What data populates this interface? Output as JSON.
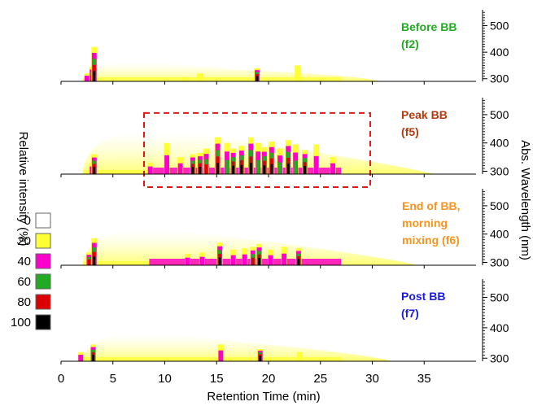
{
  "chart_data": {
    "type": "heatmap",
    "xlabel": "Retention Time (min)",
    "xlim": [
      0,
      40
    ],
    "x_ticks": [
      0,
      5,
      10,
      15,
      20,
      25,
      30,
      35
    ],
    "y_right_label": "Abs. Wavelength (nm)",
    "y_right_ticks": [
      300,
      400,
      500
    ],
    "ylim": [
      290,
      560
    ],
    "colorbar": {
      "label": "Relative intensity (%)",
      "levels": [
        {
          "value": "0",
          "color": "#ffffff"
        },
        {
          "value": "20",
          "color": "#ffff33"
        },
        {
          "value": "40",
          "color": "#ff00cc"
        },
        {
          "value": "60",
          "color": "#22aa22"
        },
        {
          "value": "80",
          "color": "#dd0000"
        },
        {
          "value": "100",
          "color": "#000000"
        }
      ]
    },
    "panels": [
      {
        "id": "f2",
        "label_line1": "Before BB",
        "label_line2": "(f2)",
        "label_color": "#22aa22",
        "glow": 0.35,
        "peaks": [
          {
            "rt": 2.5,
            "height": 320,
            "level": 40
          },
          {
            "rt": 3.0,
            "height": 345,
            "level": 80
          },
          {
            "rt": 3.2,
            "height": 420,
            "level": 100
          },
          {
            "rt": 12.0,
            "height": 305,
            "level": 20
          },
          {
            "rt": 13.4,
            "height": 320,
            "level": 20
          },
          {
            "rt": 18.9,
            "height": 340,
            "level": 100
          },
          {
            "rt": 22.8,
            "height": 350,
            "level": 20
          }
        ]
      },
      {
        "id": "f5",
        "label_line1": "Peak BB",
        "label_line2": "(f5)",
        "label_color": "#b23a10",
        "glow": 1.0,
        "highlight_box": [
          8.0,
          29.8
        ],
        "peaks": [
          {
            "rt": 3.0,
            "height": 330,
            "level": 40
          },
          {
            "rt": 3.2,
            "height": 360,
            "level": 100
          },
          {
            "rt": 8.6,
            "height": 330,
            "level": 40
          },
          {
            "rt": 10.2,
            "height": 400,
            "level": 40
          },
          {
            "rt": 11.5,
            "height": 350,
            "level": 40
          },
          {
            "rt": 12.7,
            "height": 360,
            "level": 100
          },
          {
            "rt": 13.4,
            "height": 365,
            "level": 100
          },
          {
            "rt": 14.0,
            "height": 380,
            "level": 80
          },
          {
            "rt": 15.1,
            "height": 420,
            "level": 100
          },
          {
            "rt": 16.0,
            "height": 400,
            "level": 60
          },
          {
            "rt": 16.6,
            "height": 380,
            "level": 100
          },
          {
            "rt": 17.4,
            "height": 390,
            "level": 100
          },
          {
            "rt": 18.3,
            "height": 420,
            "level": 100
          },
          {
            "rt": 19.0,
            "height": 400,
            "level": 60
          },
          {
            "rt": 19.6,
            "height": 385,
            "level": 100
          },
          {
            "rt": 20.3,
            "height": 405,
            "level": 100
          },
          {
            "rt": 21.1,
            "height": 380,
            "level": 60
          },
          {
            "rt": 21.9,
            "height": 410,
            "level": 100
          },
          {
            "rt": 22.6,
            "height": 395,
            "level": 60
          },
          {
            "rt": 23.5,
            "height": 375,
            "level": 100
          },
          {
            "rt": 24.6,
            "height": 395,
            "level": 40
          },
          {
            "rt": 26.2,
            "height": 350,
            "level": 40
          }
        ]
      },
      {
        "id": "f6",
        "label_line1": "End of BB,",
        "label_line2": "morning",
        "label_line3": "mixing (f6)",
        "label_color": "#f7941d",
        "glow": 0.8,
        "peaks": [
          {
            "rt": 2.7,
            "height": 335,
            "level": 80
          },
          {
            "rt": 3.2,
            "height": 385,
            "level": 100
          },
          {
            "rt": 12.2,
            "height": 330,
            "level": 40
          },
          {
            "rt": 13.6,
            "height": 335,
            "level": 40
          },
          {
            "rt": 15.3,
            "height": 370,
            "level": 100
          },
          {
            "rt": 16.6,
            "height": 345,
            "level": 40
          },
          {
            "rt": 17.7,
            "height": 350,
            "level": 40
          },
          {
            "rt": 18.5,
            "height": 355,
            "level": 80
          },
          {
            "rt": 19.1,
            "height": 365,
            "level": 100
          },
          {
            "rt": 20.2,
            "height": 345,
            "level": 40
          },
          {
            "rt": 21.5,
            "height": 355,
            "level": 40
          },
          {
            "rt": 22.9,
            "height": 350,
            "level": 100
          }
        ]
      },
      {
        "id": "f7",
        "label_line1": "Post BB",
        "label_line2": "(f7)",
        "label_color": "#1a1adf",
        "glow": 0.5,
        "peaks": [
          {
            "rt": 1.9,
            "height": 320,
            "level": 40
          },
          {
            "rt": 3.1,
            "height": 345,
            "level": 100
          },
          {
            "rt": 15.4,
            "height": 345,
            "level": 40
          },
          {
            "rt": 19.2,
            "height": 330,
            "level": 100
          },
          {
            "rt": 23.0,
            "height": 320,
            "level": 20
          }
        ]
      }
    ]
  }
}
